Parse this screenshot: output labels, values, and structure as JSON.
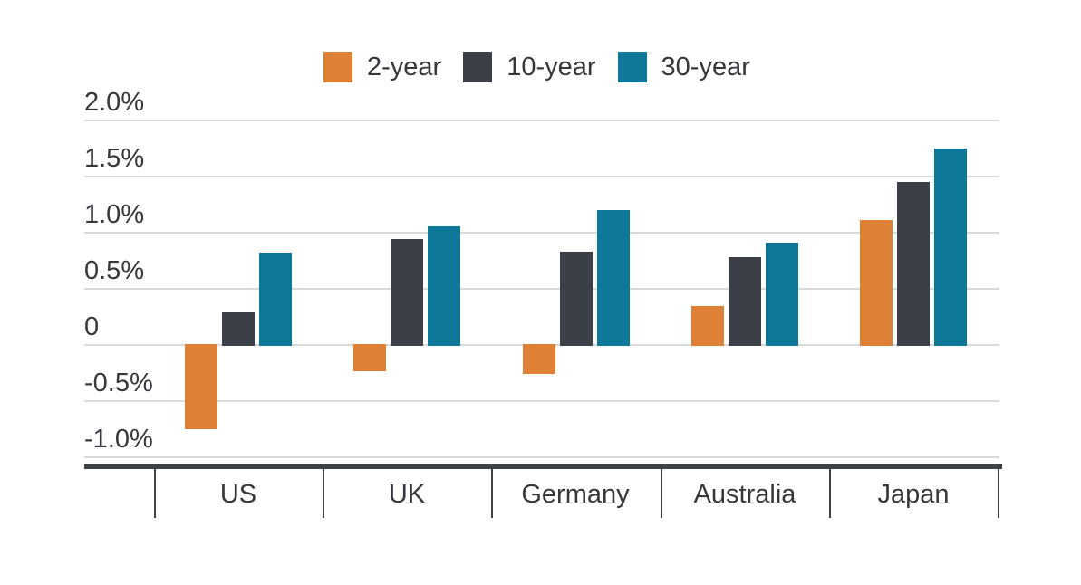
{
  "figure": {
    "background": "#FFFFFF",
    "title": ""
  },
  "chart_data": {
    "type": "bar",
    "title": "",
    "xlabel": "",
    "ylabel": "",
    "categories": [
      "US",
      "UK",
      "Germany",
      "Australia",
      "Japan"
    ],
    "series": [
      {
        "name": "2-year",
        "color": "#DE8137",
        "values": [
          -0.75,
          -0.23,
          -0.26,
          0.35,
          1.11
        ]
      },
      {
        "name": "10-year",
        "color": "#3B3F47",
        "values": [
          0.3,
          0.94,
          0.83,
          0.78,
          1.45
        ]
      },
      {
        "name": "30-year",
        "color": "#0E7899",
        "values": [
          0.82,
          1.06,
          1.2,
          0.91,
          1.75
        ]
      }
    ],
    "y_axis": {
      "tick_labels": [
        "2.0%",
        "1.5%",
        "1.0%",
        "0.5%",
        "0",
        "-0.5%",
        "-1.0%"
      ],
      "tick_values": [
        2.0,
        1.5,
        1.0,
        0.5,
        0,
        -0.5,
        -1.0
      ],
      "range": [
        -1.0,
        2.0
      ],
      "unit": "percent"
    },
    "legend": {
      "position": "top",
      "entries": [
        "2-year",
        "10-year",
        "30-year"
      ]
    },
    "grid": true
  },
  "colors": {
    "gridline": "#DADADA",
    "axis_line": "#3E4147",
    "text": "#35383D"
  }
}
